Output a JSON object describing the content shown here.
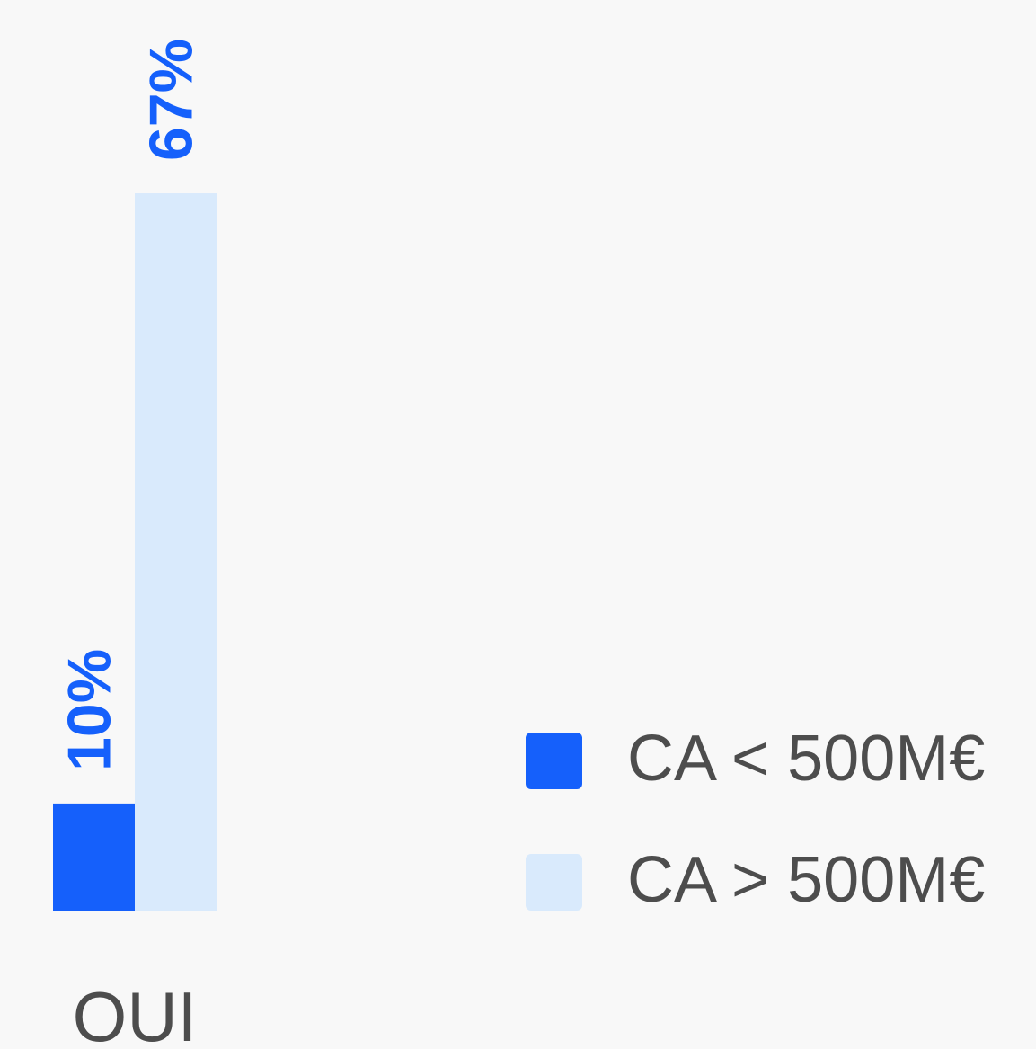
{
  "chart_data": {
    "type": "bar",
    "categories": [
      "OUI"
    ],
    "series": [
      {
        "name": "CA < 500M€",
        "color": "#1560fb",
        "values": [
          10
        ],
        "value_labels": [
          "10%"
        ]
      },
      {
        "name": "CA > 500M€",
        "color": "#d9eafc",
        "values": [
          67
        ],
        "value_labels": [
          "67%"
        ]
      }
    ]
  }
}
